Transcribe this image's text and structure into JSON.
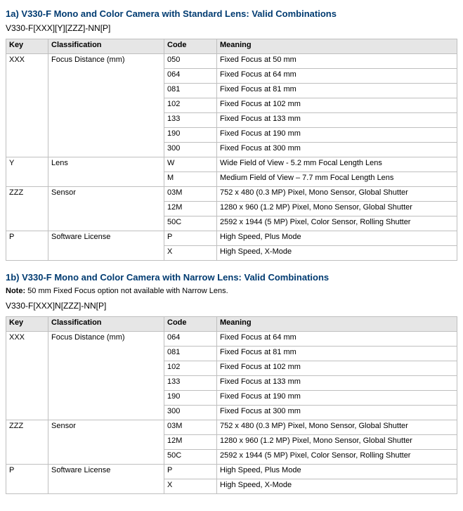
{
  "section_a": {
    "title": "1a) V330-F Mono and Color Camera with Standard Lens: Valid Combinations",
    "pattern": "V330-F[XXX][Y][ZZZ]-NN[P]",
    "headers": {
      "key": "Key",
      "class": "Classification",
      "code": "Code",
      "mean": "Meaning"
    },
    "groups": [
      {
        "key": "XXX",
        "class": "Focus Distance (mm)",
        "rows": [
          {
            "code": "050",
            "mean": "Fixed Focus at 50 mm"
          },
          {
            "code": "064",
            "mean": "Fixed Focus at 64 mm"
          },
          {
            "code": "081",
            "mean": "Fixed Focus at 81 mm"
          },
          {
            "code": "102",
            "mean": "Fixed Focus at 102 mm"
          },
          {
            "code": "133",
            "mean": "Fixed Focus at 133 mm"
          },
          {
            "code": "190",
            "mean": "Fixed Focus at 190 mm"
          },
          {
            "code": "300",
            "mean": "Fixed Focus at 300 mm"
          }
        ]
      },
      {
        "key": "Y",
        "class": "Lens",
        "rows": [
          {
            "code": "W",
            "mean": "Wide Field of View - 5.2 mm Focal Length Lens"
          },
          {
            "code": "M",
            "mean": "Medium Field of View – 7.7 mm Focal Length Lens"
          }
        ]
      },
      {
        "key": "ZZZ",
        "class": "Sensor",
        "rows": [
          {
            "code": "03M",
            "mean": "752 x 480 (0.3 MP) Pixel, Mono Sensor, Global Shutter"
          },
          {
            "code": "12M",
            "mean": "1280 x 960 (1.2 MP) Pixel, Mono Sensor, Global Shutter"
          },
          {
            "code": "50C",
            "mean": "2592 x 1944 (5 MP) Pixel, Color Sensor, Rolling Shutter"
          }
        ]
      },
      {
        "key": "P",
        "class": "Software License",
        "rows": [
          {
            "code": "P",
            "mean": "High Speed, Plus Mode"
          },
          {
            "code": "X",
            "mean": "High Speed, X-Mode"
          }
        ]
      }
    ]
  },
  "section_b": {
    "title": "1b) V330-F Mono and Color Camera with Narrow Lens: Valid Combinations",
    "note_label": "Note:",
    "note_text": " 50 mm Fixed Focus option not available with Narrow Lens.",
    "pattern": "V330-F[XXX]N[ZZZ]-NN[P]",
    "headers": {
      "key": "Key",
      "class": "Classification",
      "code": "Code",
      "mean": "Meaning"
    },
    "groups": [
      {
        "key": "XXX",
        "class": "Focus Distance (mm)",
        "rows": [
          {
            "code": "064",
            "mean": "Fixed Focus at 64 mm"
          },
          {
            "code": "081",
            "mean": "Fixed Focus at 81 mm"
          },
          {
            "code": "102",
            "mean": "Fixed Focus at 102 mm"
          },
          {
            "code": "133",
            "mean": "Fixed Focus at 133 mm"
          },
          {
            "code": "190",
            "mean": "Fixed Focus at 190 mm"
          },
          {
            "code": "300",
            "mean": "Fixed Focus at 300 mm"
          }
        ]
      },
      {
        "key": "ZZZ",
        "class": "Sensor",
        "rows": [
          {
            "code": "03M",
            "mean": "752 x 480 (0.3 MP) Pixel, Mono Sensor, Global Shutter"
          },
          {
            "code": "12M",
            "mean": "1280 x 960 (1.2 MP) Pixel, Mono Sensor, Global Shutter"
          },
          {
            "code": "50C",
            "mean": "2592 x 1944 (5 MP) Pixel, Color Sensor, Rolling Shutter"
          }
        ]
      },
      {
        "key": "P",
        "class": "Software License",
        "rows": [
          {
            "code": "P",
            "mean": "High Speed, Plus Mode"
          },
          {
            "code": "X",
            "mean": "High Speed, X-Mode"
          }
        ]
      }
    ]
  }
}
